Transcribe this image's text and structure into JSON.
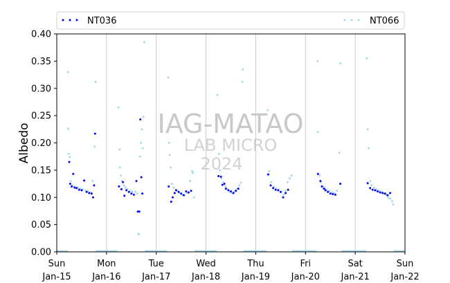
{
  "chart_data": {
    "type": "scatter",
    "ylabel": "Albedo",
    "xlabel": "",
    "ylim": [
      0,
      0.4
    ],
    "yticks": [
      "0.00",
      "0.05",
      "0.10",
      "0.15",
      "0.20",
      "0.25",
      "0.30",
      "0.35",
      "0.40"
    ],
    "xlim_days": [
      15,
      22
    ],
    "xticks": [
      {
        "day": 15,
        "weekday": "Sun",
        "date": "Jan-15"
      },
      {
        "day": 16,
        "weekday": "Mon",
        "date": "Jan-16"
      },
      {
        "day": 17,
        "weekday": "Tue",
        "date": "Jan-17"
      },
      {
        "day": 18,
        "weekday": "Wed",
        "date": "Jan-18"
      },
      {
        "day": 19,
        "weekday": "Thu",
        "date": "Jan-19"
      },
      {
        "day": 20,
        "weekday": "Fri",
        "date": "Jan-20"
      },
      {
        "day": 21,
        "weekday": "Sat",
        "date": "Jan-21"
      },
      {
        "day": 22,
        "weekday": "Sun",
        "date": "Jan-22"
      }
    ],
    "grid": "vertical",
    "legend_position": "top",
    "watermark": {
      "line1": "IAG-MATAO",
      "line2": "LAB MICRO",
      "line3": "2024"
    },
    "series": [
      {
        "name": "NT036",
        "color": "#0000ee",
        "points": [
          [
            15.25,
            0.165
          ],
          [
            15.27,
            0.125
          ],
          [
            15.3,
            0.12
          ],
          [
            15.33,
            0.143
          ],
          [
            15.36,
            0.118
          ],
          [
            15.4,
            0.117
          ],
          [
            15.45,
            0.114
          ],
          [
            15.5,
            0.113
          ],
          [
            15.55,
            0.131
          ],
          [
            15.6,
            0.11
          ],
          [
            15.65,
            0.108
          ],
          [
            15.7,
            0.107
          ],
          [
            15.73,
            0.1
          ],
          [
            15.75,
            0.122
          ],
          [
            15.77,
            0.217
          ],
          [
            16.25,
            0.12
          ],
          [
            16.3,
            0.115
          ],
          [
            16.33,
            0.128
          ],
          [
            16.36,
            0.103
          ],
          [
            16.4,
            0.113
          ],
          [
            16.45,
            0.11
          ],
          [
            16.5,
            0.107
          ],
          [
            16.55,
            0.105
          ],
          [
            16.6,
            0.13
          ],
          [
            16.63,
            0.074
          ],
          [
            16.66,
            0.074
          ],
          [
            16.68,
            0.243
          ],
          [
            16.7,
            0.137
          ],
          [
            16.72,
            0.107
          ],
          [
            17.25,
            0.12
          ],
          [
            17.3,
            0.092
          ],
          [
            17.33,
            0.1
          ],
          [
            17.37,
            0.108
          ],
          [
            17.4,
            0.113
          ],
          [
            17.45,
            0.11
          ],
          [
            17.5,
            0.107
          ],
          [
            17.55,
            0.104
          ],
          [
            17.6,
            0.111
          ],
          [
            17.65,
            0.109
          ],
          [
            17.7,
            0.112
          ],
          [
            18.25,
            0.139
          ],
          [
            18.3,
            0.138
          ],
          [
            18.33,
            0.123
          ],
          [
            18.37,
            0.125
          ],
          [
            18.4,
            0.116
          ],
          [
            18.45,
            0.113
          ],
          [
            18.5,
            0.111
          ],
          [
            18.55,
            0.108
          ],
          [
            18.6,
            0.112
          ],
          [
            18.65,
            0.116
          ],
          [
            19.25,
            0.142
          ],
          [
            19.3,
            0.122
          ],
          [
            19.35,
            0.117
          ],
          [
            19.4,
            0.114
          ],
          [
            19.45,
            0.113
          ],
          [
            19.5,
            0.11
          ],
          [
            19.55,
            0.1
          ],
          [
            19.6,
            0.108
          ],
          [
            19.65,
            0.114
          ],
          [
            20.25,
            0.143
          ],
          [
            20.3,
            0.13
          ],
          [
            20.33,
            0.12
          ],
          [
            20.37,
            0.116
          ],
          [
            20.4,
            0.113
          ],
          [
            20.45,
            0.11
          ],
          [
            20.5,
            0.107
          ],
          [
            20.55,
            0.106
          ],
          [
            20.6,
            0.105
          ],
          [
            20.7,
            0.125
          ],
          [
            21.25,
            0.126
          ],
          [
            21.3,
            0.117
          ],
          [
            21.35,
            0.114
          ],
          [
            21.4,
            0.113
          ],
          [
            21.45,
            0.111
          ],
          [
            21.5,
            0.109
          ],
          [
            21.55,
            0.108
          ],
          [
            21.6,
            0.107
          ],
          [
            21.65,
            0.104
          ],
          [
            21.7,
            0.108
          ]
        ]
      },
      {
        "name": "NT066",
        "color": "#a8d8ea",
        "points": [
          [
            15.22,
            0.33
          ],
          [
            15.23,
            0.226
          ],
          [
            15.24,
            0.18
          ],
          [
            15.26,
            0.174
          ],
          [
            15.28,
            0.13
          ],
          [
            15.31,
            0.122
          ],
          [
            15.35,
            0.12
          ],
          [
            15.42,
            0.118
          ],
          [
            15.47,
            0.116
          ],
          [
            15.52,
            0.115
          ],
          [
            15.58,
            0.112
          ],
          [
            15.62,
            0.112
          ],
          [
            15.68,
            0.109
          ],
          [
            15.72,
            0.13
          ],
          [
            15.76,
            0.193
          ],
          [
            15.78,
            0.312
          ],
          [
            16.24,
            0.265
          ],
          [
            16.26,
            0.188
          ],
          [
            16.27,
            0.155
          ],
          [
            16.29,
            0.14
          ],
          [
            16.31,
            0.13
          ],
          [
            16.35,
            0.122
          ],
          [
            16.38,
            0.118
          ],
          [
            16.42,
            0.115
          ],
          [
            16.48,
            0.112
          ],
          [
            16.52,
            0.11
          ],
          [
            16.58,
            0.11
          ],
          [
            16.62,
            0.107
          ],
          [
            16.64,
            0.033
          ],
          [
            16.65,
            0.032
          ],
          [
            16.67,
            0.175
          ],
          [
            16.69,
            0.2
          ],
          [
            16.71,
            0.225
          ],
          [
            16.73,
            0.19
          ],
          [
            16.74,
            0.248
          ],
          [
            16.76,
            0.385
          ],
          [
            17.24,
            0.32
          ],
          [
            17.26,
            0.2
          ],
          [
            17.27,
            0.178
          ],
          [
            17.29,
            0.155
          ],
          [
            17.32,
            0.125
          ],
          [
            17.35,
            0.118
          ],
          [
            17.39,
            0.114
          ],
          [
            17.43,
            0.112
          ],
          [
            17.47,
            0.108
          ],
          [
            17.52,
            0.105
          ],
          [
            17.57,
            0.104
          ],
          [
            17.62,
            0.108
          ],
          [
            17.68,
            0.13
          ],
          [
            17.72,
            0.148
          ],
          [
            17.74,
            0.145
          ],
          [
            17.76,
            0.1
          ],
          [
            18.23,
            0.288
          ],
          [
            18.26,
            0.18
          ],
          [
            18.28,
            0.15
          ],
          [
            18.31,
            0.135
          ],
          [
            18.35,
            0.128
          ],
          [
            18.39,
            0.12
          ],
          [
            18.43,
            0.115
          ],
          [
            18.48,
            0.11
          ],
          [
            18.52,
            0.108
          ],
          [
            18.57,
            0.11
          ],
          [
            18.62,
            0.115
          ],
          [
            18.67,
            0.122
          ],
          [
            18.7,
            0.127
          ],
          [
            18.73,
            0.312
          ],
          [
            18.74,
            0.335
          ],
          [
            19.24,
            0.26
          ],
          [
            19.27,
            0.148
          ],
          [
            19.31,
            0.128
          ],
          [
            19.36,
            0.12
          ],
          [
            19.41,
            0.117
          ],
          [
            19.46,
            0.114
          ],
          [
            19.51,
            0.11
          ],
          [
            19.56,
            0.105
          ],
          [
            19.6,
            0.112
          ],
          [
            19.64,
            0.128
          ],
          [
            19.68,
            0.135
          ],
          [
            19.72,
            0.14
          ],
          [
            20.24,
            0.35
          ],
          [
            20.25,
            0.22
          ],
          [
            20.28,
            0.14
          ],
          [
            20.31,
            0.128
          ],
          [
            20.35,
            0.12
          ],
          [
            20.39,
            0.117
          ],
          [
            20.43,
            0.114
          ],
          [
            20.48,
            0.112
          ],
          [
            20.53,
            0.109
          ],
          [
            20.58,
            0.108
          ],
          [
            20.63,
            0.112
          ],
          [
            20.68,
            0.182
          ],
          [
            20.7,
            0.346
          ],
          [
            21.23,
            0.355
          ],
          [
            21.25,
            0.225
          ],
          [
            21.27,
            0.19
          ],
          [
            21.3,
            0.13
          ],
          [
            21.33,
            0.122
          ],
          [
            21.38,
            0.118
          ],
          [
            21.43,
            0.115
          ],
          [
            21.48,
            0.112
          ],
          [
            21.53,
            0.11
          ],
          [
            21.58,
            0.107
          ],
          [
            21.62,
            0.105
          ],
          [
            21.66,
            0.1
          ],
          [
            21.7,
            0.098
          ],
          [
            21.74,
            0.093
          ],
          [
            21.76,
            0.087
          ]
        ]
      }
    ],
    "night_baseline": [
      [
        15.0,
        15.22
      ],
      [
        15.78,
        16.22
      ],
      [
        16.77,
        17.22
      ],
      [
        17.77,
        18.22
      ],
      [
        18.75,
        19.22
      ],
      [
        19.73,
        20.22
      ],
      [
        20.72,
        21.22
      ],
      [
        21.77,
        22.0
      ]
    ]
  }
}
